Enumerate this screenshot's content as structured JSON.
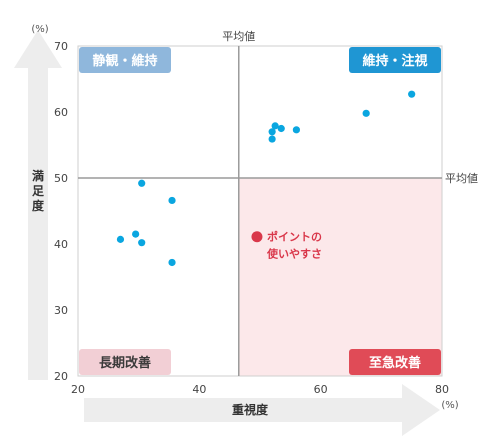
{
  "chart_data": {
    "type": "scatter",
    "xlabel": "重視度",
    "ylabel": "満足度",
    "x_unit": "(%)",
    "y_unit": "(%)",
    "xlim": [
      20,
      80
    ],
    "ylim": [
      20,
      70
    ],
    "x_ticks": [
      20,
      40,
      60,
      80
    ],
    "y_ticks": [
      20,
      30,
      40,
      50,
      60,
      70
    ],
    "average": {
      "x": 46.5,
      "y": 50,
      "x_label": "平均値",
      "y_label": "平均値"
    },
    "series": [
      {
        "color": "#0aa6e0",
        "points": [
          {
            "x": 27,
            "y": 40.7
          },
          {
            "x": 29.5,
            "y": 41.5
          },
          {
            "x": 30.5,
            "y": 40.2
          },
          {
            "x": 30.5,
            "y": 49.2
          },
          {
            "x": 35.5,
            "y": 46.6
          },
          {
            "x": 35.5,
            "y": 37.2
          },
          {
            "x": 52,
            "y": 55.9
          },
          {
            "x": 52,
            "y": 57.0
          },
          {
            "x": 52.5,
            "y": 57.9
          },
          {
            "x": 53.5,
            "y": 57.5
          },
          {
            "x": 56,
            "y": 57.3
          },
          {
            "x": 67.5,
            "y": 59.8
          },
          {
            "x": 75,
            "y": 62.7
          }
        ]
      }
    ],
    "highlight": {
      "x": 49.5,
      "y": 41.1,
      "color": "#d9374a",
      "label_line1": "ポイントの",
      "label_line2": "使いやすさ"
    },
    "quadrants": {
      "top_left": {
        "label": "静観・維持",
        "bg": "#8fb7dc"
      },
      "top_right": {
        "label": "維持・注視",
        "bg": "#1f96d3"
      },
      "bottom_left": {
        "label": "長期改善",
        "bg": "#f2cfd5"
      },
      "bottom_right": {
        "label": "至急改善",
        "bg": "#e04b57",
        "fill": "#fce8ea"
      }
    }
  }
}
